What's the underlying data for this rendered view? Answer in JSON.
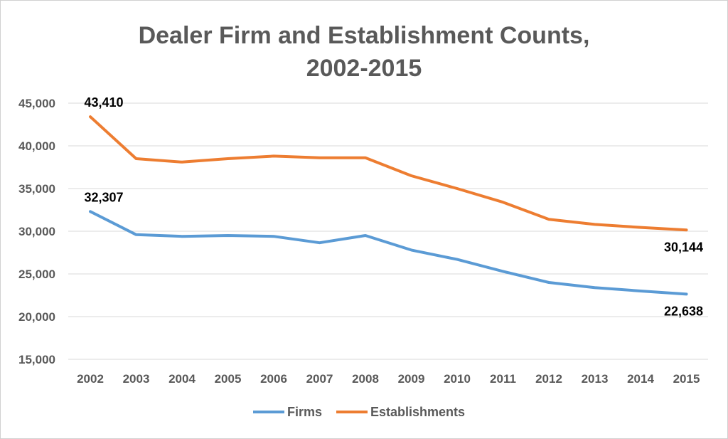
{
  "chart_data": {
    "type": "line",
    "title": [
      "Dealer Firm and Establishment Counts,",
      "2002-2015"
    ],
    "xlabel": "",
    "ylabel": "",
    "x": [
      "2002",
      "2003",
      "2004",
      "2005",
      "2006",
      "2007",
      "2008",
      "2009",
      "2010",
      "2011",
      "2012",
      "2013",
      "2014",
      "2015"
    ],
    "ylim": [
      15000,
      45000
    ],
    "yticks": [
      15000,
      20000,
      25000,
      30000,
      35000,
      40000,
      45000
    ],
    "ytick_labels": [
      "15,000",
      "20,000",
      "25,000",
      "30,000",
      "35,000",
      "40,000",
      "45,000"
    ],
    "grid": true,
    "legend_position": "bottom",
    "series": [
      {
        "name": "Firms",
        "color": "#5b9bd5",
        "values": [
          32307,
          29600,
          29400,
          29500,
          29400,
          28650,
          29500,
          27800,
          26700,
          25300,
          24000,
          23400,
          23000,
          22638
        ],
        "labels": [
          {
            "index": 0,
            "text": "32,307",
            "position": "above"
          },
          {
            "index": 13,
            "text": "22,638",
            "position": "below"
          }
        ]
      },
      {
        "name": "Establishments",
        "color": "#ed7d31",
        "values": [
          43410,
          38500,
          38100,
          38500,
          38800,
          38600,
          38600,
          36500,
          35000,
          33400,
          31400,
          30800,
          30450,
          30144
        ],
        "labels": [
          {
            "index": 0,
            "text": "43,410",
            "position": "above"
          },
          {
            "index": 13,
            "text": "30,144",
            "position": "below"
          }
        ]
      }
    ]
  }
}
